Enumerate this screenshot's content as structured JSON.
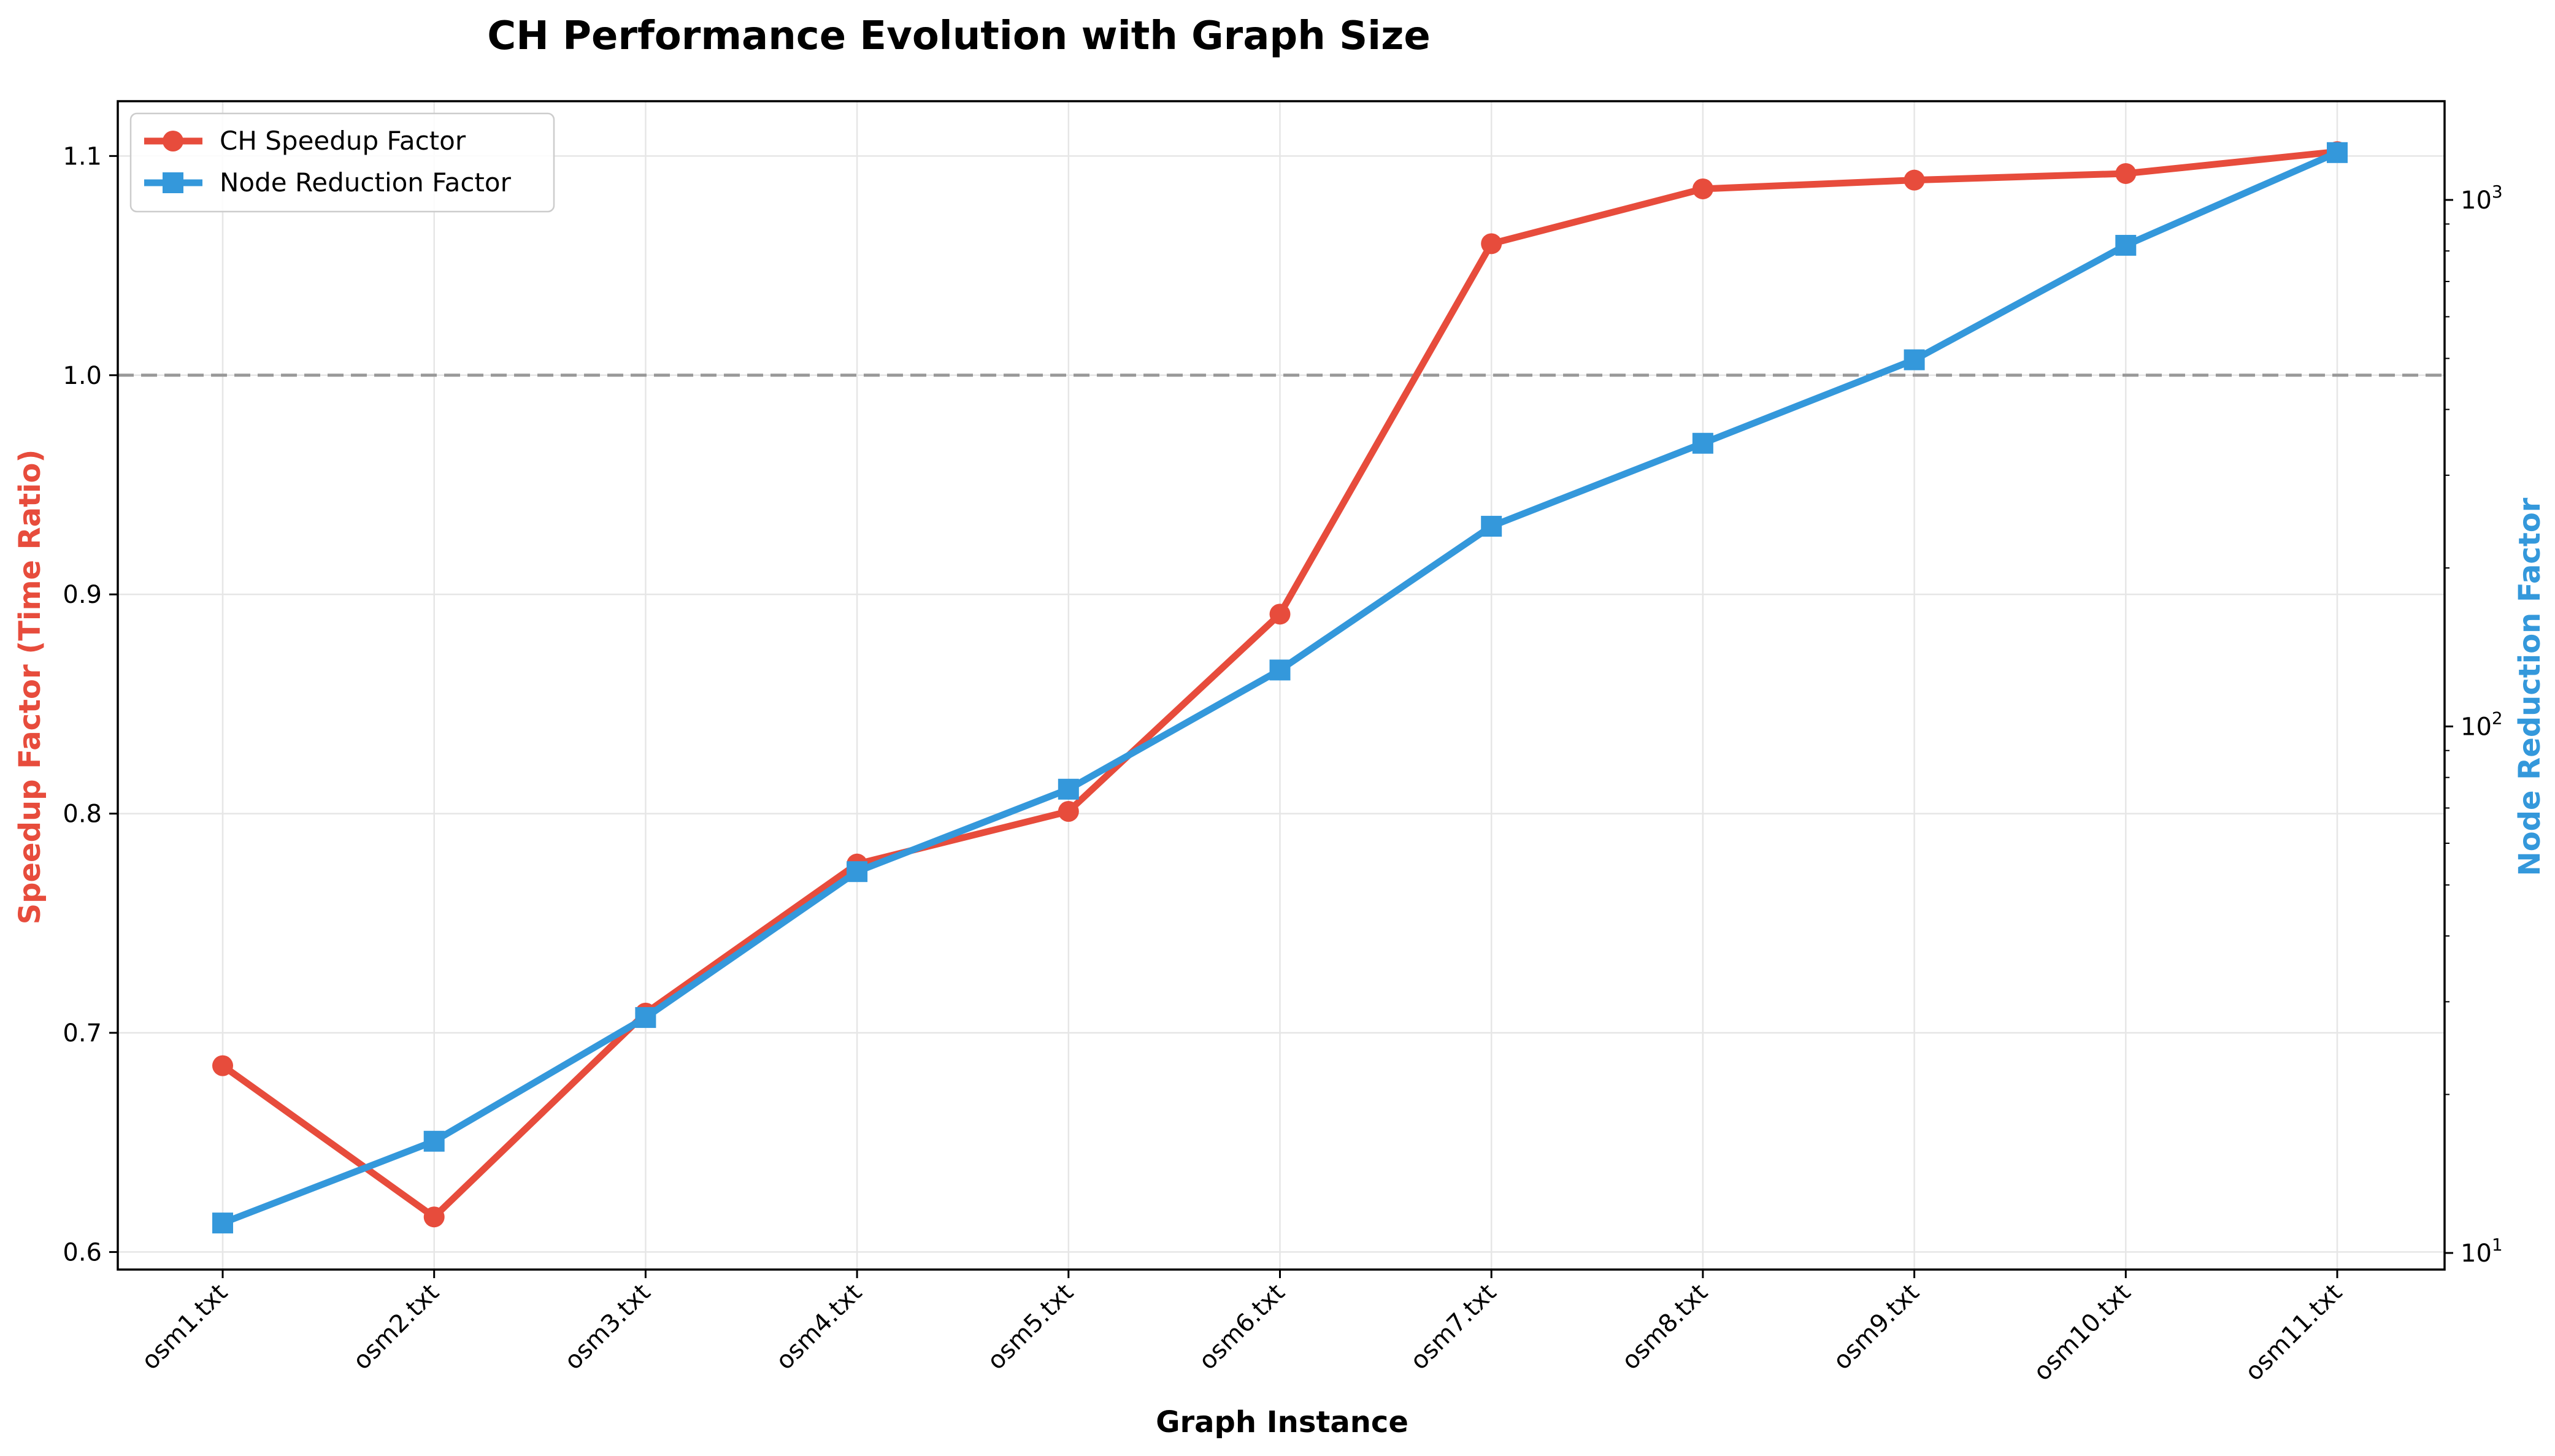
{
  "chart_data": {
    "type": "line",
    "title": "CH Performance Evolution with Graph Size",
    "xlabel": "Graph Instance",
    "ylabel_left": "Speedup Factor (Time Ratio)",
    "ylabel_right": "Node Reduction Factor",
    "categories": [
      "osm1.txt",
      "osm2.txt",
      "osm3.txt",
      "osm4.txt",
      "osm5.txt",
      "osm6.txt",
      "osm7.txt",
      "osm8.txt",
      "osm9.txt",
      "osm10.txt",
      "osm11.txt"
    ],
    "ylim_left": [
      0.592,
      1.125
    ],
    "yticks_left": [
      "0.6",
      "0.7",
      "0.8",
      "0.9",
      "1.0",
      "1.1"
    ],
    "ylim_right": [
      9.3,
      1540
    ],
    "yscale_right": "log",
    "yticks_right": [
      {
        "value": 10,
        "base": "10",
        "exp": "1"
      },
      {
        "value": 100,
        "base": "10",
        "exp": "2"
      },
      {
        "value": 1000,
        "base": "10",
        "exp": "3"
      }
    ],
    "reference_line": {
      "value": 1.0,
      "style": "dashed",
      "color": "#999999"
    },
    "grid": true,
    "legend_position": "top-left",
    "series": [
      {
        "name": "CH Speedup Factor",
        "axis": "left",
        "color": "#e74c3c",
        "marker": "circle",
        "values": [
          0.685,
          0.616,
          0.709,
          0.777,
          0.801,
          0.891,
          1.06,
          1.085,
          1.089,
          1.092,
          1.102
        ]
      },
      {
        "name": "Node Reduction Factor",
        "axis": "right",
        "color": "#3498db",
        "marker": "square",
        "values": [
          11.4,
          16.3,
          28,
          53,
          76,
          128,
          240,
          345,
          497,
          820,
          1230
        ]
      }
    ]
  }
}
